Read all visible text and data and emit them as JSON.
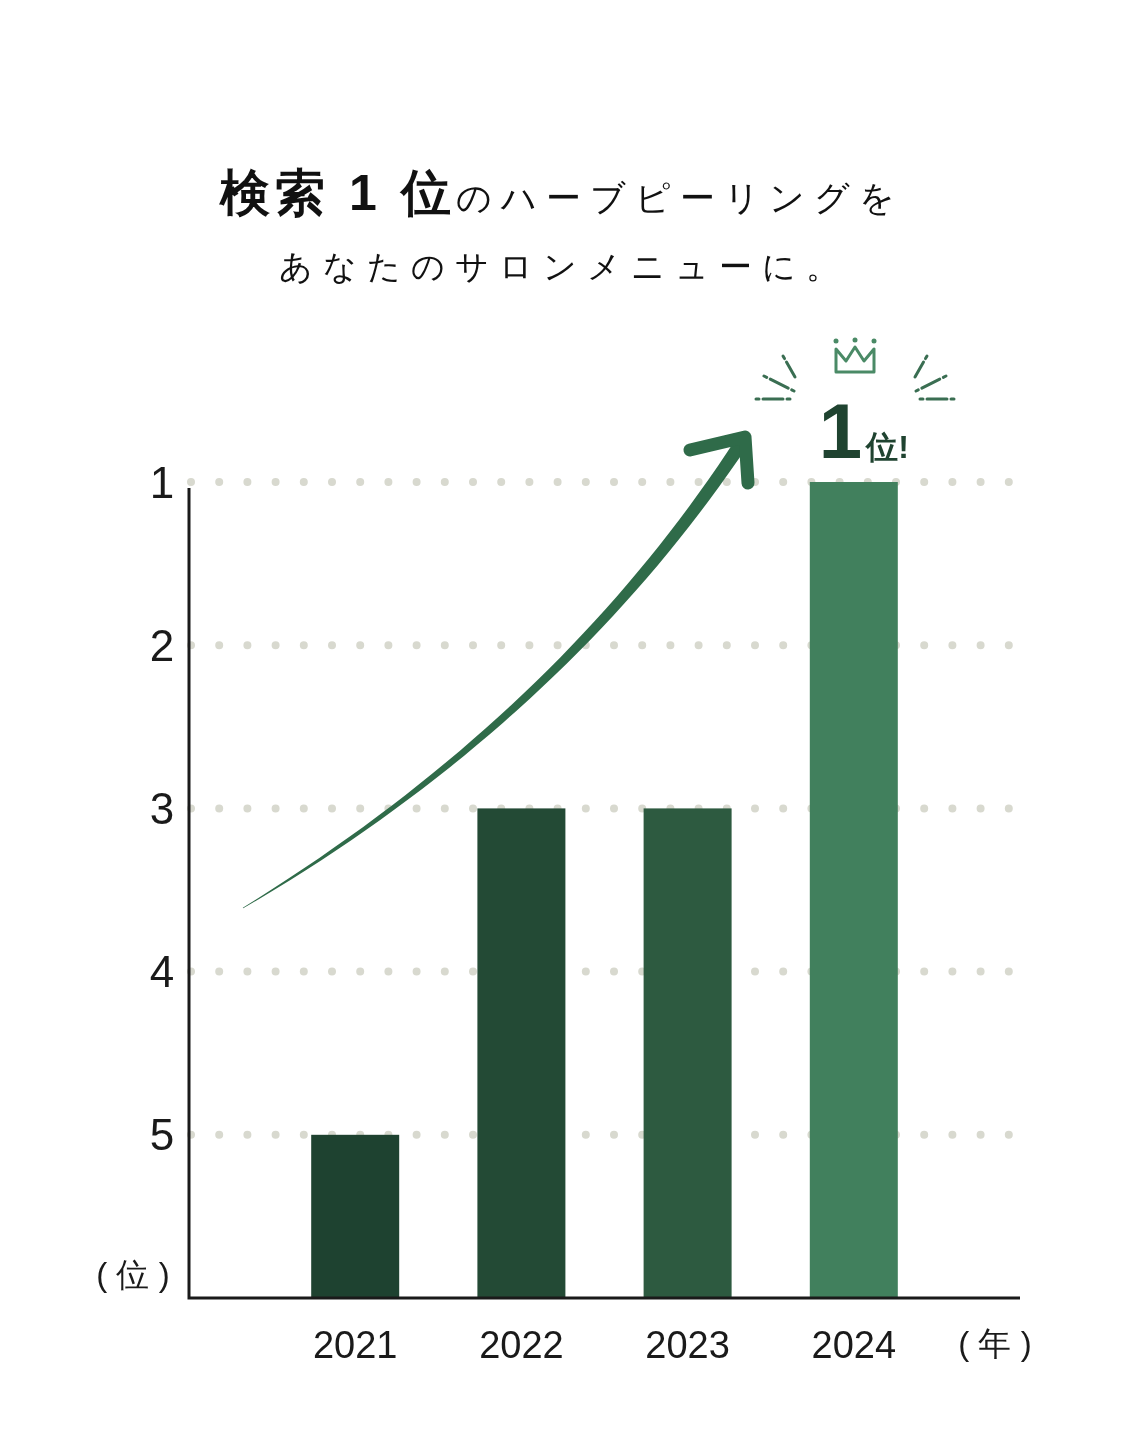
{
  "chart_data": {
    "type": "bar",
    "title": "**検索 1 位**のハーブピーリングを",
    "subtitle": "あなたのサロンメニューに。",
    "ylabel": "( 位 )",
    "xlabel": "( 年 )",
    "categories": [
      "2021",
      "2022",
      "2023",
      "2024"
    ],
    "base": [
      6,
      6,
      6,
      6
    ],
    "values": [
      -1,
      -3,
      -3,
      -5
    ],
    "colors": [
      "#1e4230",
      "#234a35",
      "#2d5a40",
      "#41805d"
    ],
    "ylim": [
      6,
      1
    ],
    "yticks": [
      1,
      2,
      3,
      4,
      5
    ],
    "grid": "y",
    "annotations": [
      {
        "text": "1位!",
        "x": "2024",
        "y": 1
      }
    ]
  }
}
